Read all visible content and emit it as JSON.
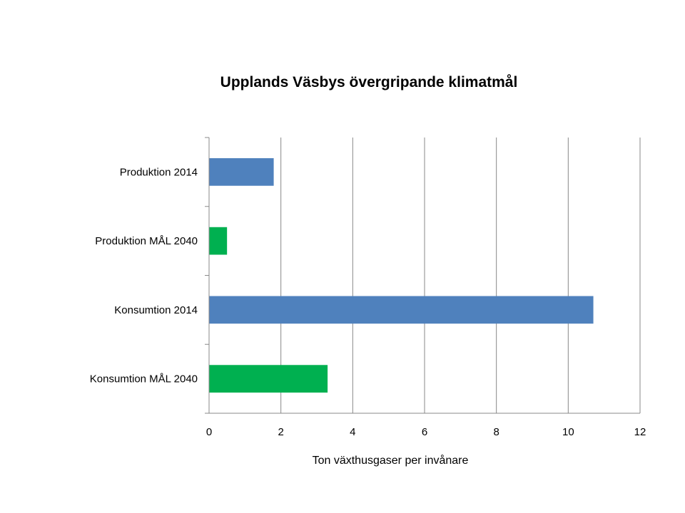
{
  "chart_data": {
    "type": "bar",
    "orientation": "horizontal",
    "title": "Upplands Väsbys övergripande klimatmål",
    "xlabel": "Ton växthusgaser per invånare",
    "ylabel": "",
    "xlim": [
      0,
      12
    ],
    "xticks": [
      "0",
      "2",
      "4",
      "6",
      "8",
      "10",
      "12"
    ],
    "grid": true,
    "legend": "none",
    "categories": [
      "Produktion 2014",
      "Produktion MÅL 2040",
      "Konsumtion 2014",
      "Konsumtion MÅL 2040"
    ],
    "values": [
      1.8,
      0.5,
      10.7,
      3.3
    ],
    "colors": [
      "#4f81bd",
      "#00b050",
      "#4f81bd",
      "#00b050"
    ]
  }
}
